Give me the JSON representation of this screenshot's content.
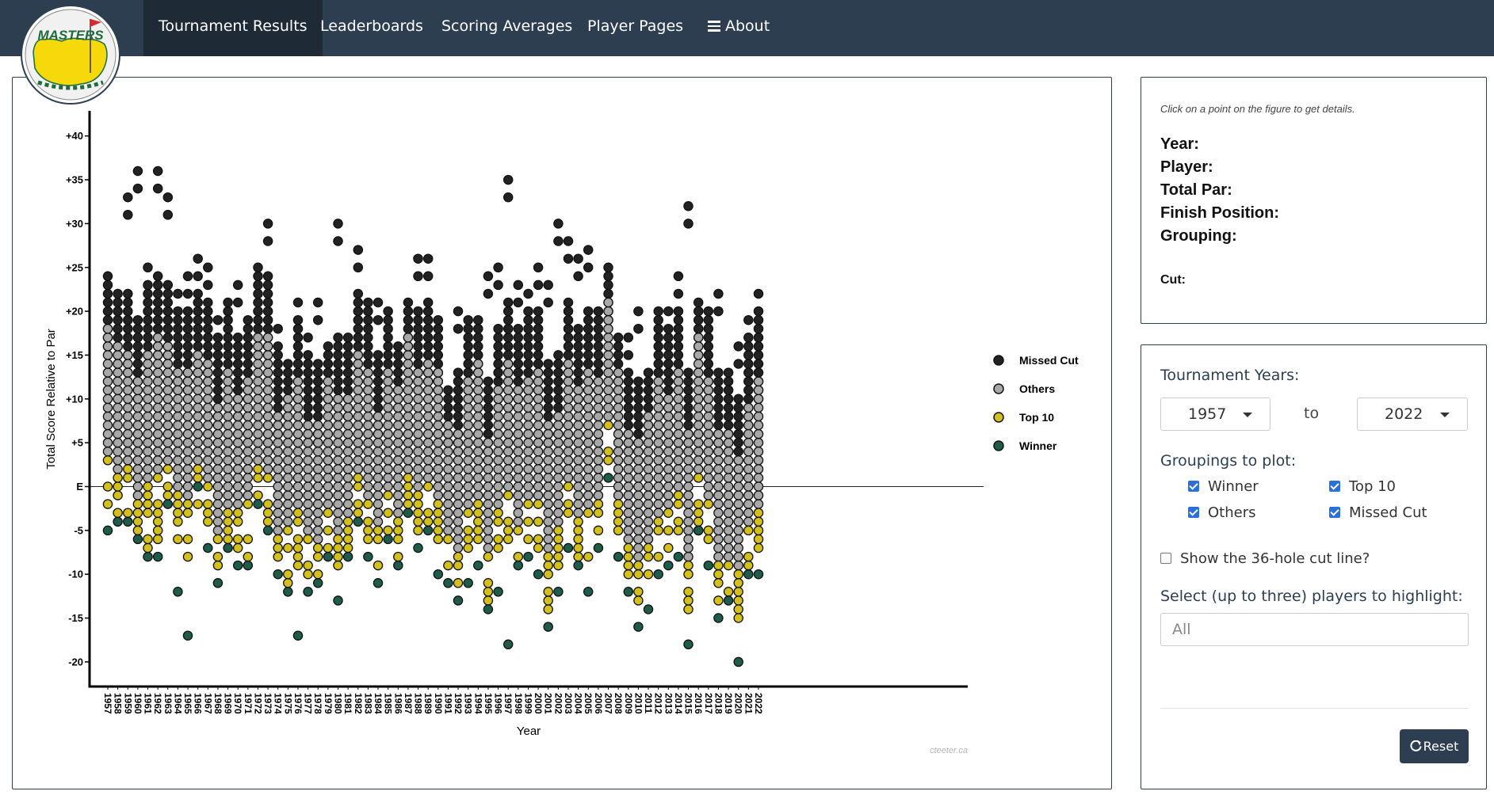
{
  "nav": {
    "items": [
      {
        "id": "tournament-results",
        "label": "Tournament Results",
        "active": true
      },
      {
        "id": "leaderboards",
        "label": "Leaderboards",
        "active": false
      },
      {
        "id": "scoring-averages",
        "label": "Scoring Averages",
        "active": false
      },
      {
        "id": "player-pages",
        "label": "Player Pages",
        "active": false
      },
      {
        "id": "about",
        "label": "About",
        "icon": "hamburger-icon",
        "active": false
      }
    ],
    "logo_text": "MASTERS",
    "background": "#2c3e50"
  },
  "details": {
    "hint": "Click on a point on the figure to get details.",
    "year_label": "Year:",
    "player_label": "Player:",
    "total_par_label": "Total Par:",
    "finish_label": "Finish Position:",
    "grouping_label": "Grouping:",
    "cut_label": "Cut:"
  },
  "controls": {
    "years_label": "Tournament Years:",
    "year_from": "1957",
    "to_label": "to",
    "year_to": "2022",
    "groupings_label": "Groupings to plot:",
    "groupings": [
      {
        "label": "Winner",
        "checked": true
      },
      {
        "label": "Top 10",
        "checked": true
      },
      {
        "label": "Others",
        "checked": true
      },
      {
        "label": "Missed Cut",
        "checked": true
      }
    ],
    "cutline_label": "Show the 36-hole cut line?",
    "cutline_checked": false,
    "highlight_label": "Select (up to three) players to highlight:",
    "highlight_placeholder": "All",
    "reset_label": "Reset"
  },
  "chart_data": {
    "type": "scatter",
    "xlabel": "Year",
    "ylabel": "Total Score Relative to Par",
    "watermark": "cteeter.ca",
    "years": [
      1957,
      1958,
      1959,
      1960,
      1961,
      1962,
      1963,
      1964,
      1965,
      1966,
      1967,
      1968,
      1969,
      1970,
      1971,
      1972,
      1973,
      1974,
      1975,
      1976,
      1977,
      1978,
      1979,
      1980,
      1981,
      1982,
      1983,
      1984,
      1985,
      1986,
      1987,
      1988,
      1989,
      1990,
      1991,
      1992,
      1993,
      1994,
      1995,
      1996,
      1997,
      1998,
      1999,
      2000,
      2001,
      2002,
      2003,
      2004,
      2005,
      2006,
      2007,
      2008,
      2009,
      2010,
      2011,
      2012,
      2013,
      2014,
      2015,
      2016,
      2017,
      2018,
      2019,
      2020,
      2021,
      2022
    ],
    "ylim": [
      -22,
      41
    ],
    "yticks": [
      {
        "value": 40,
        "label": "+40"
      },
      {
        "value": 35,
        "label": "+35"
      },
      {
        "value": 30,
        "label": "+30"
      },
      {
        "value": 25,
        "label": "+25"
      },
      {
        "value": 20,
        "label": "+20"
      },
      {
        "value": 15,
        "label": "+15"
      },
      {
        "value": 10,
        "label": "+10"
      },
      {
        "value": 5,
        "label": "+5"
      },
      {
        "value": 0,
        "label": "E"
      },
      {
        "value": -5,
        "label": "-5"
      },
      {
        "value": -10,
        "label": "-10"
      },
      {
        "value": -15,
        "label": "-15"
      },
      {
        "value": -20,
        "label": "-20"
      }
    ],
    "legend_position": "right",
    "series": [
      {
        "name": "Missed Cut",
        "color": "#222222"
      },
      {
        "name": "Others",
        "color": "#a8a8a8"
      },
      {
        "name": "Top 10",
        "color": "#d4c01c"
      },
      {
        "name": "Winner",
        "color": "#1d5c4a"
      }
    ],
    "winner_scores": [
      -5,
      -4,
      -4,
      -6,
      -8,
      -8,
      -2,
      -12,
      -17,
      0,
      -7,
      -11,
      -7,
      -9,
      -9,
      -2,
      -5,
      -10,
      -12,
      -17,
      -12,
      -11,
      -8,
      -13,
      -8,
      -4,
      -8,
      -11,
      -6,
      -9,
      -3,
      -7,
      -5,
      -10,
      -11,
      -13,
      -11,
      -9,
      -14,
      -12,
      -18,
      -9,
      -8,
      -10,
      -16,
      -12,
      -7,
      -9,
      -12,
      -7,
      1,
      -8,
      -12,
      -16,
      -14,
      -10,
      -9,
      -8,
      -18,
      -5,
      -9,
      -15,
      -13,
      -20,
      -10,
      -10
    ],
    "top10_scores": [
      [
        -2,
        1,
        3
      ],
      [
        -3,
        -1,
        1
      ],
      [
        -3,
        -1,
        2
      ],
      [
        -5,
        -4,
        -2
      ],
      [
        -7,
        -3,
        0
      ],
      [
        -6,
        -1,
        1
      ],
      [
        -1,
        0,
        2
      ],
      [
        -6,
        -4,
        -1
      ],
      [
        -8,
        -5,
        -2
      ],
      [
        -2,
        1,
        2
      ],
      [
        -4,
        -2,
        0
      ],
      [
        -9,
        -7,
        -6
      ],
      [
        -6,
        -4,
        -3
      ],
      [
        -7,
        -5,
        -3
      ],
      [
        -8,
        -5,
        -2
      ],
      [
        -1,
        0,
        2
      ],
      [
        -4,
        -3,
        1
      ],
      [
        -8,
        -7,
        -6
      ],
      [
        -11,
        -7,
        -5
      ],
      [
        -9,
        -6,
        -3
      ],
      [
        -10,
        -8,
        -6
      ],
      [
        -10,
        -9,
        -7
      ],
      [
        -7,
        -5,
        -3
      ],
      [
        -9,
        -8,
        -6
      ],
      [
        -7,
        -5,
        -4
      ],
      [
        -3,
        -1,
        1
      ],
      [
        -6,
        -4,
        -2
      ],
      [
        -9,
        -7,
        -5
      ],
      [
        -5,
        -3,
        -1
      ],
      [
        -8,
        -6,
        -4
      ],
      [
        -2,
        -1,
        1
      ],
      [
        -5,
        -3,
        -1
      ],
      [
        -4,
        -2,
        0
      ],
      [
        -6,
        -4,
        -2
      ],
      [
        -9,
        -8,
        -6
      ],
      [
        -11,
        -10,
        -8
      ],
      [
        -7,
        -5,
        -3
      ],
      [
        -6,
        -4,
        -2
      ],
      [
        -13,
        -11,
        -8
      ],
      [
        -7,
        -5,
        -3
      ],
      [
        -6,
        -3,
        -1
      ],
      [
        -8,
        -7,
        -5
      ],
      [
        -6,
        -4,
        -2
      ],
      [
        -7,
        -4,
        -2
      ],
      [
        -14,
        -10,
        -8
      ],
      [
        -9,
        -7,
        -5
      ],
      [
        -3,
        -2,
        0
      ],
      [
        -8,
        -6,
        -4
      ],
      [
        -8,
        -5,
        -3
      ],
      [
        -5,
        -4,
        -2
      ],
      [
        3,
        5,
        7
      ],
      [
        -5,
        -3,
        -2
      ],
      [
        -10,
        -8,
        -7
      ],
      [
        -13,
        -11,
        -9
      ],
      [
        -10,
        -8,
        -7
      ],
      [
        -8,
        -5,
        -4
      ],
      [
        -7,
        -5,
        -3
      ],
      [
        -5,
        -3,
        -1
      ],
      [
        -14,
        -11,
        -9
      ],
      [
        -5,
        -2,
        1
      ],
      [
        -6,
        -4,
        -2
      ],
      [
        -13,
        -11,
        -9
      ],
      [
        -12,
        -11,
        -9
      ],
      [
        -15,
        -12,
        -10
      ],
      [
        -9,
        -7,
        -5
      ],
      [
        -7,
        -5,
        -3
      ]
    ],
    "max_scores": [
      24,
      22,
      33,
      36,
      25,
      36,
      33,
      22,
      24,
      26,
      25,
      19,
      21,
      23,
      19,
      25,
      30,
      18,
      14,
      21,
      17,
      21,
      16,
      30,
      17,
      27,
      21,
      21,
      20,
      16,
      21,
      26,
      26,
      19,
      11,
      20,
      19,
      19,
      24,
      25,
      35,
      23,
      22,
      25,
      23,
      30,
      28,
      26,
      27,
      20,
      25,
      17,
      17,
      20,
      13,
      20,
      20,
      24,
      32,
      21,
      20,
      22,
      13,
      16,
      19,
      22
    ]
  }
}
